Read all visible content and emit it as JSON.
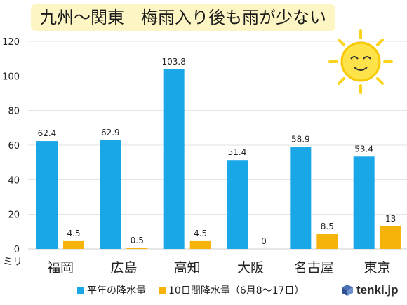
{
  "title": "九州〜関東　梅雨入り後も雨が少ない",
  "unit_label": "ミリ",
  "brand": "tenki.jp",
  "colors": {
    "normal": "#1aa7e8",
    "recent": "#f6b40b",
    "title_bg": "#fdf5c4"
  },
  "chart_data": {
    "type": "bar",
    "categories": [
      "福岡",
      "広島",
      "高知",
      "大阪",
      "名古屋",
      "東京"
    ],
    "series": [
      {
        "name": "平年の降水量",
        "values": [
          62.4,
          62.9,
          103.8,
          51.4,
          58.9,
          53.4
        ],
        "labels": [
          "62.4",
          "62.9",
          "103.8",
          "51.4",
          "58.9",
          "53.4"
        ]
      },
      {
        "name": "10日間降水量（6月8〜17日）",
        "values": [
          4.5,
          0.5,
          4.5,
          0,
          8.5,
          13
        ],
        "labels": [
          "4.5",
          "0.5",
          "4.5",
          "0",
          "8.5",
          "13"
        ]
      }
    ],
    "yticks": [
      "0",
      "20",
      "40",
      "60",
      "80",
      "100",
      "120"
    ],
    "ylim": [
      0,
      120
    ],
    "ylabel": "ミリ",
    "grid": true,
    "legend_position": "bottom"
  }
}
